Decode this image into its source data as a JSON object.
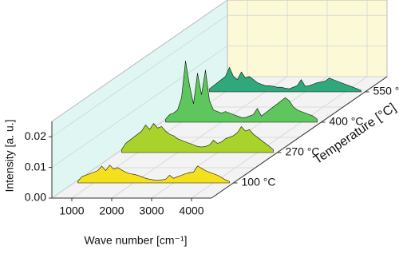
{
  "chart_data": {
    "type": "waterfall",
    "x_label": "Wave number [cm⁻¹]",
    "y_label": "Intensity [a. u.]",
    "z_label": "Temperature [°C]",
    "xlim": [
      500,
      4500
    ],
    "xticks": [
      1000,
      2000,
      3000,
      4000
    ],
    "ylim": [
      0,
      0.025
    ],
    "yticks": [
      {
        "value": 0,
        "label": "0.00"
      },
      {
        "value": 0.01,
        "label": "0.01"
      },
      {
        "value": 0.02,
        "label": "0.02"
      }
    ],
    "grid": true,
    "x": [
      600,
      700,
      800,
      900,
      1000,
      1100,
      1200,
      1300,
      1400,
      1500,
      1600,
      1700,
      1800,
      1900,
      2000,
      2100,
      2200,
      2300,
      2400,
      2500,
      2600,
      2700,
      2800,
      2900,
      3000,
      3100,
      3200,
      3300,
      3400,
      3500,
      3600,
      3700,
      3800,
      3900,
      4000,
      4100,
      4200,
      4300,
      4400
    ],
    "series": [
      {
        "name": "100 °C",
        "color": "#f4e01c",
        "values": [
          0.0005,
          0.002,
          0.0025,
          0.003,
          0.0035,
          0.004,
          0.0055,
          0.004,
          0.0058,
          0.0045,
          0.005,
          0.0042,
          0.0035,
          0.003,
          0.0028,
          0.0025,
          0.002,
          0.0015,
          0.0012,
          0.001,
          0.0008,
          0.001,
          0.0012,
          0.0025,
          0.0015,
          0.002,
          0.0025,
          0.003,
          0.0033,
          0.0035,
          0.0055,
          0.0048,
          0.004,
          0.0035,
          0.003,
          0.0025,
          0.0018,
          0.001,
          0.0005
        ]
      },
      {
        "name": "270 °C",
        "color": "#a9d22b",
        "values": [
          0.001,
          0.003,
          0.004,
          0.005,
          0.006,
          0.007,
          0.009,
          0.0075,
          0.0095,
          0.008,
          0.0085,
          0.007,
          0.006,
          0.0055,
          0.0045,
          0.004,
          0.0035,
          0.003,
          0.0025,
          0.002,
          0.0018,
          0.002,
          0.0025,
          0.004,
          0.003,
          0.0035,
          0.0045,
          0.005,
          0.0055,
          0.0065,
          0.0085,
          0.007,
          0.0075,
          0.006,
          0.005,
          0.004,
          0.003,
          0.002,
          0.001
        ]
      },
      {
        "name": "400 °C",
        "color": "#5dc65c",
        "values": [
          0.001,
          0.0025,
          0.003,
          0.004,
          0.008,
          0.02,
          0.012,
          0.006,
          0.016,
          0.009,
          0.017,
          0.007,
          0.004,
          0.0035,
          0.003,
          0.0035,
          0.003,
          0.0025,
          0.002,
          0.0015,
          0.0015,
          0.002,
          0.0025,
          0.0045,
          0.002,
          0.003,
          0.004,
          0.005,
          0.006,
          0.007,
          0.008,
          0.007,
          0.005,
          0.004,
          0.0035,
          0.003,
          0.0025,
          0.002,
          0.001
        ]
      },
      {
        "name": "550 °C",
        "color": "#2fa97c",
        "values": [
          0.001,
          0.002,
          0.003,
          0.004,
          0.005,
          0.008,
          0.005,
          0.004,
          0.0065,
          0.0045,
          0.005,
          0.004,
          0.003,
          0.0025,
          0.002,
          0.002,
          0.0018,
          0.0015,
          0.0015,
          0.0012,
          0.001,
          0.0015,
          0.002,
          0.004,
          0.0018,
          0.002,
          0.0025,
          0.003,
          0.0032,
          0.0035,
          0.0045,
          0.004,
          0.0035,
          0.003,
          0.0025,
          0.002,
          0.0015,
          0.001,
          0.0005
        ]
      }
    ]
  }
}
